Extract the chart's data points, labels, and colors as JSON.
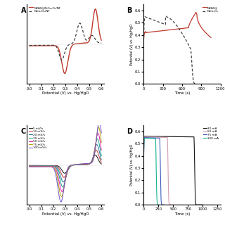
{
  "panel_labels": [
    "A",
    "B",
    "C",
    "D"
  ],
  "xlabel_potential": "Potential (V) vs. Hg/HgO",
  "xlabel_time": "Time (s)",
  "ylabel_gcd": "Potential (V) vs. Hg/HgO",
  "legend_solid": "NiNW@NiCo₂O₄/NF",
  "legend_dashed": "NiCo₂O₄/NF",
  "scan_rates": [
    "5 mV/s",
    "10 mV/s",
    "20 mV/s",
    "30 mV/s",
    "50 mV/s",
    "75 mV/s",
    "100 mV/s"
  ],
  "scan_colors": [
    "#111111",
    "#c0392b",
    "#2471a3",
    "#17a589",
    "#e91eaf",
    "#b8a000",
    "#7050cc"
  ],
  "gcd_rates_D": [
    "30 mA",
    "50 mA",
    "75 mA",
    "100 mA"
  ],
  "gcd_colors_D": [
    "#111111",
    "#d4a0b0",
    "#4060c0",
    "#18b090"
  ],
  "solid_color": "#c0392b",
  "dashed_color": "#404040",
  "xlim_A": [
    -0.02,
    0.62
  ],
  "ylim_A": [
    -1.0,
    1.0
  ],
  "xlim_C": [
    -0.02,
    0.62
  ],
  "ylim_C": [
    -1.0,
    1.0
  ],
  "xlim_B": [
    0,
    1200
  ],
  "ylim_B": [
    0.0,
    0.65
  ],
  "xticks_B": [
    0,
    300,
    600,
    900,
    1200
  ],
  "xlim_D": [
    0,
    1300
  ],
  "ylim_D": [
    0.0,
    0.65
  ],
  "xticks_D": [
    0,
    250,
    500,
    750,
    1000,
    1250
  ],
  "yticks_gcd": [
    0.0,
    0.1,
    0.2,
    0.3,
    0.4,
    0.5,
    0.6
  ],
  "background_color": "#ffffff"
}
